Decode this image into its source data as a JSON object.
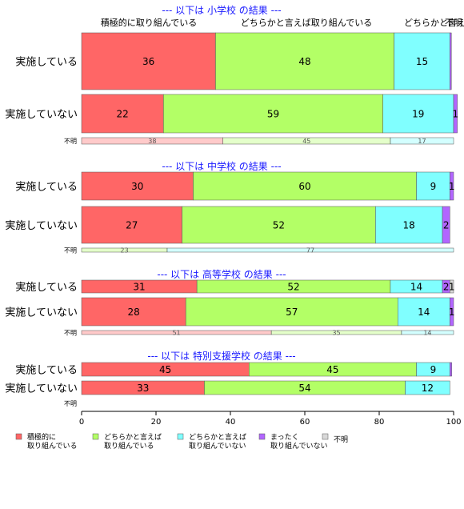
{
  "chart_data": {
    "type": "bar",
    "orientation": "horizontal-stacked-percent",
    "xlim": [
      0,
      100
    ],
    "xticks": [
      "0",
      "20",
      "40",
      "60",
      "80",
      "100"
    ],
    "top_labels": [
      "積極的に取り組んでいる",
      "どちらかと言えば取り組んでいる",
      "どちらかと言えば",
      "不明"
    ],
    "categories": [
      {
        "label": "積極的に\n取り組んでいる",
        "color": "#ff6666"
      },
      {
        "label": "どちらかと言えば\n取り組んでいる",
        "color": "#b3ff66"
      },
      {
        "label": "どちらかと言えば\n取り組んでいない",
        "color": "#80ffff"
      },
      {
        "label": "まったく\n取り組んでいない",
        "color": "#b266ff"
      },
      {
        "label": "不明",
        "color": "#d9d9d9"
      }
    ],
    "groups": [
      {
        "title": "--- 以下は 小学校 の結果 ---",
        "rows": [
          {
            "label": "実施している",
            "values": [
              36,
              48,
              15,
              0.4,
              0
            ],
            "labels": [
              "36",
              "48",
              "15",
              "",
              ""
            ]
          },
          {
            "label": "実施していない",
            "values": [
              22,
              59,
              19,
              1,
              0
            ],
            "labels": [
              "22",
              "59",
              "19",
              "1",
              ""
            ]
          },
          {
            "label": "不明",
            "small": true,
            "values": [
              38,
              45,
              17,
              0,
              0
            ],
            "labels": [
              "38",
              "45",
              "17",
              "",
              ""
            ]
          }
        ]
      },
      {
        "title": "--- 以下は 中学校 の結果 ---",
        "rows": [
          {
            "label": "実施している",
            "values": [
              30,
              60,
              9,
              1,
              0
            ],
            "labels": [
              "30",
              "60",
              "9",
              "1",
              ""
            ]
          },
          {
            "label": "実施していない",
            "values": [
              27,
              52,
              18,
              2,
              0
            ],
            "labels": [
              "27",
              "52",
              "18",
              "2",
              ""
            ]
          },
          {
            "label": "不明",
            "small": true,
            "values": [
              0,
              23,
              77,
              0,
              0
            ],
            "labels": [
              "",
              "23",
              "77",
              "",
              ""
            ]
          }
        ]
      },
      {
        "title": "--- 以下は 高等学校 の結果 ---",
        "rows": [
          {
            "label": "実施している",
            "values": [
              31,
              52,
              14,
              2,
              1
            ],
            "labels": [
              "31",
              "52",
              "14",
              "2",
              "1"
            ]
          },
          {
            "label": "実施していない",
            "values": [
              28,
              57,
              14,
              1,
              0
            ],
            "labels": [
              "28",
              "57",
              "14",
              "1",
              ""
            ]
          },
          {
            "label": "不明",
            "small": true,
            "values": [
              51,
              35,
              14,
              0,
              0
            ],
            "labels": [
              "51",
              "35",
              "14",
              "",
              ""
            ]
          }
        ]
      },
      {
        "title": "--- 以下は 特別支援学校 の結果 ---",
        "rows": [
          {
            "label": "実施している",
            "values": [
              45,
              45,
              9,
              0.5,
              0
            ],
            "labels": [
              "45",
              "45",
              "9",
              "",
              ""
            ]
          },
          {
            "label": "実施していない",
            "values": [
              33,
              54,
              12,
              0,
              0
            ],
            "labels": [
              "33",
              "54",
              "12",
              "",
              ""
            ]
          },
          {
            "label": "不明",
            "small": true,
            "values": [
              0,
              0,
              0,
              0,
              0
            ],
            "labels": [
              "",
              "",
              "",
              "",
              ""
            ]
          }
        ]
      }
    ]
  }
}
